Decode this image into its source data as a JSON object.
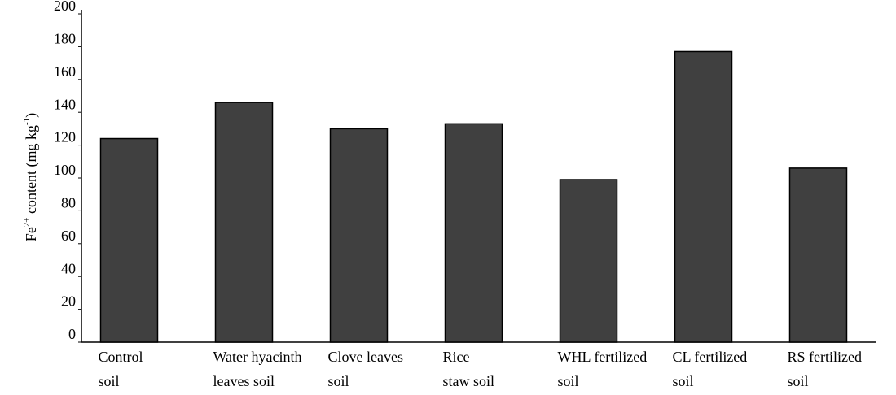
{
  "chart_data": {
    "type": "bar",
    "y_label": [
      "Fe",
      "2+",
      " content (mg kg",
      "-1",
      ")"
    ],
    "categories": [
      [
        "Control",
        "soil"
      ],
      [
        "Water hyacinth",
        "leaves soil"
      ],
      [
        "Clove leaves",
        "soil"
      ],
      [
        "Rice",
        "staw soil"
      ],
      [
        "WHL fertilized",
        "soil"
      ],
      [
        "CL fertilized",
        "soil"
      ],
      [
        "RS fertilized",
        "soil"
      ]
    ],
    "values": [
      124,
      146,
      130,
      133,
      99,
      177,
      106
    ],
    "color": "#404040",
    "ylim": [
      0,
      200
    ],
    "yticks": [
      0,
      20,
      40,
      60,
      80,
      100,
      120,
      140,
      160,
      180,
      200
    ],
    "grid": false
  }
}
